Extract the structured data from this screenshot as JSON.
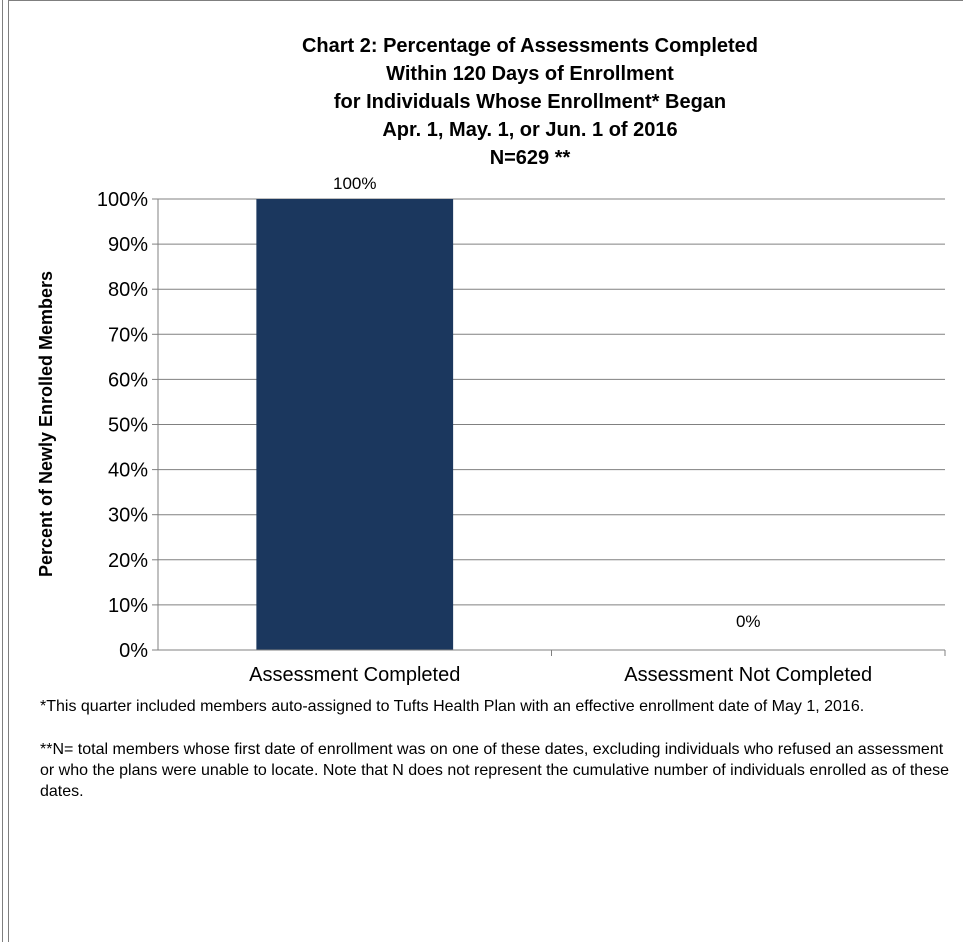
{
  "chart_data": {
    "type": "bar",
    "title_lines": [
      "Chart 2: Percentage of Assessments Completed",
      "Within 120 Days of Enrollment",
      "for Individuals Whose Enrollment* Began",
      "Apr. 1, May. 1, or Jun. 1 of 2016",
      "N=629 **"
    ],
    "categories": [
      "Assessment Completed",
      "Assessment Not Completed"
    ],
    "values": [
      100,
      0
    ],
    "data_labels": [
      "100%",
      "0%"
    ],
    "ylabel": "Percent of Newly Enrolled Members",
    "ylim": [
      0,
      100
    ],
    "yticks": [
      "0%",
      "10%",
      "20%",
      "30%",
      "40%",
      "50%",
      "60%",
      "70%",
      "80%",
      "90%",
      "100%"
    ],
    "grid": true,
    "bar_color": "#1b375e"
  },
  "notes": {
    "note1": "*This quarter included members auto-assigned to Tufts Health Plan with an effective enrollment date of May 1, 2016.",
    "note2": "**N= total members whose first date of enrollment was on one of these dates, excluding individuals who refused an assessment or who the plans were unable to locate. Note that N does not represent the cumulative number of individuals enrolled as of these dates."
  }
}
